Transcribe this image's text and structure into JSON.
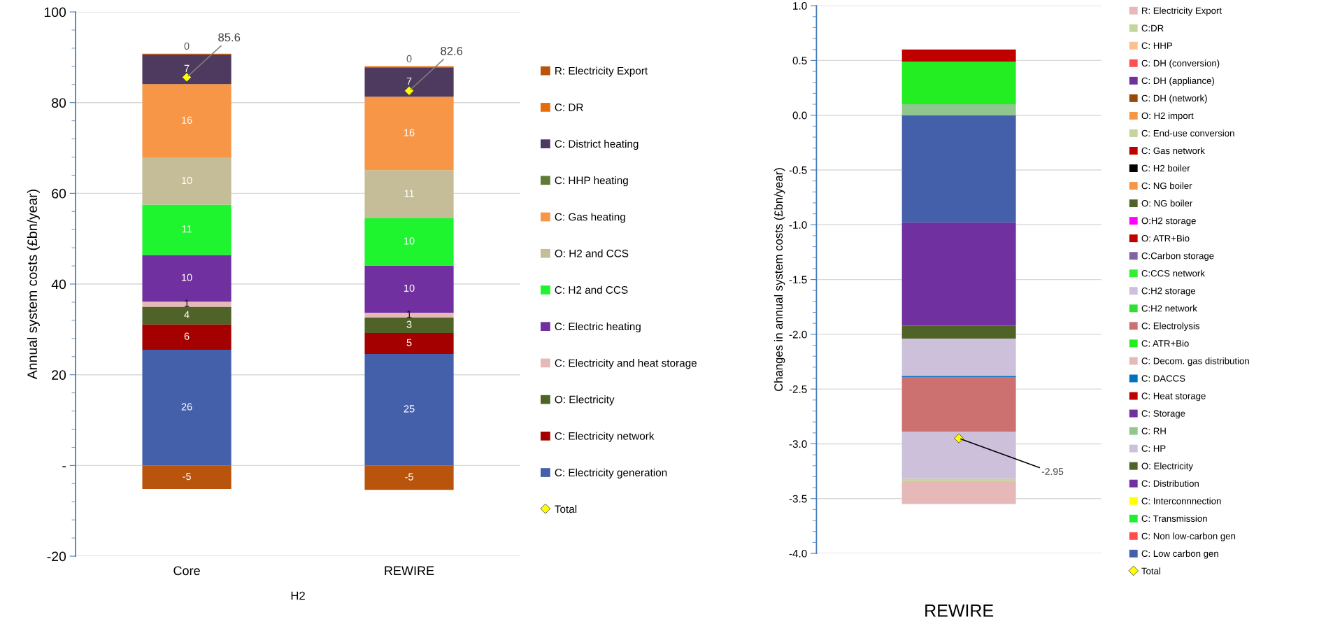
{
  "chart_data": [
    {
      "type": "bar",
      "stacked": true,
      "categories": [
        "Core",
        "REWIRE"
      ],
      "xlabel": "H2",
      "ylabel": "Annual system costs (£bn/year)",
      "ylim": [
        -20,
        100
      ],
      "yticks": [
        -20,
        {
          "value": 0,
          "label": "-"
        },
        20,
        40,
        60,
        80,
        100
      ],
      "grid": "y",
      "legend": "right",
      "series": [
        {
          "name": "C: Electricity generation",
          "color": "#4460aa",
          "values": [
            25.5,
            24.6
          ],
          "value_labels": [
            "26",
            "25"
          ]
        },
        {
          "name": "C: Electricity network",
          "color": "#a50000",
          "values": [
            5.6,
            4.6
          ],
          "value_labels": [
            "6",
            "5"
          ]
        },
        {
          "name": "O: Electricity",
          "color": "#4f6228",
          "values": [
            3.9,
            3.4
          ],
          "value_labels": [
            "4",
            "3"
          ]
        },
        {
          "name": "C: Electricity and heat storage",
          "color": "#e6b9b8",
          "values": [
            1.1,
            1.1
          ],
          "value_labels": [
            "1",
            "1"
          ]
        },
        {
          "name": "C: Electric heating",
          "color": "#7030a0",
          "values": [
            10.3,
            10.4
          ],
          "value_labels": [
            "10",
            "10"
          ]
        },
        {
          "name": "C: H2 and CCS",
          "color": "#1ef52e",
          "values": [
            11.1,
            10.4
          ],
          "value_labels": [
            "11",
            "10"
          ]
        },
        {
          "name": "O: H2 and CCS",
          "color": "#c4bd97",
          "values": [
            10.3,
            10.6
          ],
          "value_labels": [
            "10",
            "11"
          ]
        },
        {
          "name": "C: Gas heating",
          "color": "#f79646",
          "values": [
            16.3,
            16.2
          ],
          "value_labels": [
            "16",
            "16"
          ]
        },
        {
          "name": "C: HHP heating",
          "color": "#5e7c33",
          "values": [
            0,
            0
          ],
          "value_labels": [
            null,
            null
          ]
        },
        {
          "name": "C: District heating",
          "color": "#4f3a5f",
          "values": [
            6.5,
            6.5
          ],
          "value_labels": [
            "7",
            "7"
          ]
        },
        {
          "name": "C: DR",
          "color": "#e46c0a",
          "values": [
            0.2,
            0.2
          ],
          "value_labels": [
            "0",
            "0"
          ]
        },
        {
          "name": "R: Electricity Export",
          "color": "#b8540b",
          "values": [
            -5.2,
            -5.4
          ],
          "value_labels": [
            "-5",
            "-5"
          ]
        },
        {
          "name": "Total",
          "type": "scatter",
          "marker": "diamond",
          "color": "#ffff00",
          "values": [
            85.6,
            82.6
          ],
          "value_labels": [
            "85.6",
            "82.6"
          ]
        }
      ]
    },
    {
      "type": "bar",
      "stacked": true,
      "categories": [
        "REWIRE"
      ],
      "ylabel": "Changes in annual system costs (£bn/year)",
      "ylim": [
        -4,
        1
      ],
      "yticks": [
        {
          "value": -4,
          "label": "-4.0"
        },
        {
          "value": -3.5,
          "label": "-3.5"
        },
        {
          "value": -3,
          "label": "-3.0"
        },
        {
          "value": -2.5,
          "label": "-2.5"
        },
        {
          "value": -2,
          "label": "-2.0"
        },
        {
          "value": -1.5,
          "label": "-1.5"
        },
        {
          "value": -1,
          "label": "-1.0"
        },
        {
          "value": -0.5,
          "label": "-0.5"
        },
        {
          "value": 0,
          "label": "0.0"
        },
        {
          "value": 0.5,
          "label": "0.5"
        },
        {
          "value": 1,
          "label": "1.0"
        }
      ],
      "grid": "y",
      "legend": "right",
      "series": [
        {
          "name": "C: Low carbon gen",
          "color": "#4460aa",
          "values": [
            -0.98
          ]
        },
        {
          "name": "C: Non low-carbon gen",
          "color": "#ff4b4b",
          "values": [
            0
          ]
        },
        {
          "name": "C: Transmission",
          "color": "#22ee33",
          "values": [
            0
          ]
        },
        {
          "name": "C: Interconnnection",
          "color": "#ffff00",
          "values": [
            0
          ]
        },
        {
          "name": "C: Distribution",
          "color": "#7030a0",
          "values": [
            -0.94
          ]
        },
        {
          "name": "O: Electricity",
          "color": "#4f6228",
          "values": [
            -0.12
          ]
        },
        {
          "name": "C: HP",
          "color": "#ccc0da",
          "values": [
            -0.34
          ]
        },
        {
          "name": "C: RH",
          "color": "#8fc78f",
          "values": [
            0.1
          ]
        },
        {
          "name": "C: Storage",
          "color": "#7030a0",
          "values": [
            0
          ]
        },
        {
          "name": "C: Heat storage",
          "color": "#c00000",
          "values": [
            0
          ]
        },
        {
          "name": "C: DACCS",
          "color": "#0070c0",
          "values": [
            -0.01
          ]
        },
        {
          "name": "C: Decom. gas distribution",
          "color": "#e6b9b8",
          "values": [
            0
          ]
        },
        {
          "name": "C: ATR+Bio",
          "color": "#22ee22",
          "values": [
            0.39
          ]
        },
        {
          "name": "C: Electrolysis",
          "color": "#cd7070",
          "values": [
            -0.5
          ]
        },
        {
          "name": "C:H2 network",
          "color": "#33dd33",
          "values": [
            0
          ]
        },
        {
          "name": "C:H2 storage",
          "color": "#ccc0da",
          "values": [
            -0.43
          ]
        },
        {
          "name": "C:CCS network",
          "color": "#33ee33",
          "values": [
            0
          ]
        },
        {
          "name": "C:Carbon storage",
          "color": "#8064a2",
          "values": [
            0
          ]
        },
        {
          "name": "O: ATR+Bio",
          "color": "#c00000",
          "values": [
            0.11
          ]
        },
        {
          "name": "O:H2 storage",
          "color": "#ff00ff",
          "values": [
            0
          ]
        },
        {
          "name": "O: NG boiler",
          "color": "#4f6228",
          "values": [
            0
          ]
        },
        {
          "name": "C: NG boiler",
          "color": "#f79646",
          "values": [
            0
          ]
        },
        {
          "name": "C: H2 boiler",
          "color": "#000000",
          "values": [
            0
          ]
        },
        {
          "name": "C: Gas network",
          "color": "#c00000",
          "values": [
            0
          ]
        },
        {
          "name": "C: End-use conversion",
          "color": "#c3d69b",
          "values": [
            0
          ]
        },
        {
          "name": "O: H2 import",
          "color": "#f79646",
          "values": [
            0
          ]
        },
        {
          "name": "C: DH (network)",
          "color": "#974706",
          "values": [
            0
          ]
        },
        {
          "name": "C: DH (appliance)",
          "color": "#7030a0",
          "values": [
            0
          ]
        },
        {
          "name": "C: DH (conversion)",
          "color": "#ff5050",
          "values": [
            0
          ]
        },
        {
          "name": "C: HHP",
          "color": "#fac090",
          "values": [
            0
          ]
        },
        {
          "name": "C:DR",
          "color": "#c3d69b",
          "values": [
            -0.02
          ]
        },
        {
          "name": "R: Electricity Export",
          "color": "#e6b9b8",
          "values": [
            -0.21
          ]
        },
        {
          "name": "Total",
          "type": "scatter",
          "marker": "diamond",
          "color": "#ffff00",
          "values": [
            -2.95
          ],
          "value_labels": [
            "-2.95"
          ]
        }
      ]
    }
  ]
}
